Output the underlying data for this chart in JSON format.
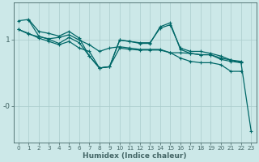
{
  "xlabel": "Humidex (Indice chaleur)",
  "bg_color": "#cce8e8",
  "line_color": "#006868",
  "grid_color": "#aacccc",
  "axis_color": "#446666",
  "text_color": "#446666",
  "xlim": [
    -0.5,
    23.5
  ],
  "ylim": [
    -0.55,
    1.55
  ],
  "ytick_vals": [
    1.0,
    0.0
  ],
  "ytick_labels": [
    "1",
    "-0"
  ],
  "xticks": [
    0,
    1,
    2,
    3,
    4,
    5,
    6,
    7,
    8,
    9,
    10,
    11,
    12,
    13,
    14,
    15,
    16,
    17,
    18,
    19,
    20,
    21,
    22,
    23
  ],
  "series": [
    {
      "x": [
        0,
        1,
        2,
        3,
        4,
        5,
        6,
        7,
        8,
        9,
        10,
        11,
        12,
        13,
        14,
        15,
        16,
        17,
        18,
        19,
        20,
        21,
        22
      ],
      "y": [
        1.15,
        1.08,
        1.04,
        1.01,
        1.03,
        1.07,
        0.99,
        0.92,
        0.82,
        0.87,
        0.89,
        0.87,
        0.85,
        0.85,
        0.85,
        0.8,
        0.8,
        0.79,
        0.77,
        0.77,
        0.72,
        0.69,
        0.67
      ]
    },
    {
      "x": [
        0,
        1,
        2,
        3,
        4,
        5,
        6,
        7,
        8,
        9,
        10,
        11,
        12,
        13,
        14,
        15,
        16,
        17,
        18,
        19,
        20,
        21,
        22,
        23
      ],
      "y": [
        1.28,
        1.3,
        1.12,
        1.09,
        1.05,
        1.12,
        1.02,
        0.75,
        0.57,
        0.59,
        0.99,
        0.97,
        0.95,
        0.95,
        1.17,
        1.22,
        0.87,
        0.82,
        0.82,
        0.79,
        0.75,
        0.69,
        0.65,
        -0.38
      ]
    },
    {
      "x": [
        0,
        1,
        2,
        3,
        4,
        5,
        6,
        7,
        8,
        9,
        10,
        11,
        12,
        13,
        14,
        15,
        16,
        17,
        18,
        19,
        20,
        21,
        22
      ],
      "y": [
        1.15,
        1.09,
        1.02,
        0.97,
        0.92,
        0.97,
        0.87,
        0.82,
        0.57,
        0.59,
        0.87,
        0.85,
        0.84,
        0.84,
        0.84,
        0.8,
        0.72,
        0.67,
        0.65,
        0.65,
        0.62,
        0.52,
        0.52
      ]
    },
    {
      "x": [
        1,
        2,
        3,
        4,
        5,
        6,
        7,
        8,
        9,
        10,
        11,
        12,
        13,
        14,
        15,
        16,
        17,
        18,
        19,
        20,
        21,
        22
      ],
      "y": [
        1.29,
        1.05,
        1.0,
        0.94,
        1.03,
        0.95,
        0.75,
        0.57,
        0.59,
        0.99,
        0.97,
        0.94,
        0.94,
        1.19,
        1.25,
        0.85,
        0.79,
        0.77,
        0.77,
        0.7,
        0.67,
        0.65
      ]
    }
  ],
  "xlabel_fontsize": 6.5,
  "tick_fontsize": 5.2,
  "ytick_fontsize": 6.5,
  "linewidth": 0.9,
  "markersize": 2.5,
  "markeredgewidth": 0.8
}
